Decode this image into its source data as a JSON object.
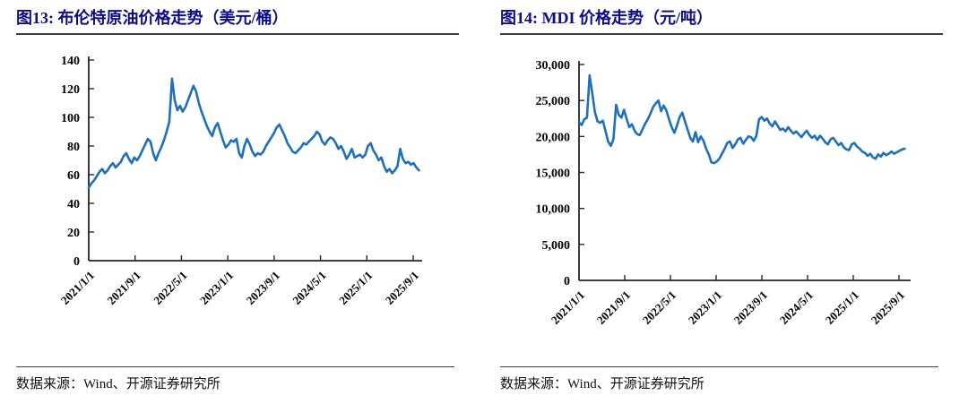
{
  "page": {
    "background": "#ffffff"
  },
  "colors": {
    "line": "#1e6fbc",
    "title": "#0c0c86",
    "axis": "#262626",
    "rule": "#404040",
    "text": "#111111"
  },
  "figures": [
    {
      "id": "图13",
      "title": "图13:  布伦特原油价格走势（美元/桶）",
      "source": "数据来源：Wind、开源证券研究所"
    },
    {
      "id": "图14",
      "title": "图14:  MDI 价格走势（元/吨）",
      "source": "数据来源：Wind、开源证券研究所"
    }
  ],
  "chart_data": [
    {
      "type": "line",
      "title": "布伦特原油价格走势",
      "unit": "美元/桶",
      "legend": "none",
      "grid": false,
      "ylim": [
        0,
        140
      ],
      "yticks": [
        0,
        20,
        40,
        60,
        80,
        100,
        120,
        140
      ],
      "ytick_labels": [
        "0",
        "20",
        "40",
        "60",
        "80",
        "100",
        "120",
        "140"
      ],
      "x_tick_labels": [
        "2021/1/1",
        "2021/9/1",
        "2022/5/1",
        "2023/1/1",
        "2023/9/1",
        "2024/5/1",
        "2025/1/1",
        "2025/9/1"
      ],
      "x_tick_months": [
        0,
        8,
        16,
        24,
        32,
        40,
        48,
        56
      ],
      "x_total_months": 57,
      "series": [
        {
          "name": "布伦特原油价格",
          "values": [
            51,
            54,
            56,
            59,
            62,
            64,
            61,
            63,
            66,
            68,
            65,
            67,
            69,
            73,
            75,
            71,
            68,
            72,
            70,
            73,
            77,
            81,
            85,
            83,
            75,
            70,
            75,
            79,
            84,
            90,
            97,
            127,
            112,
            105,
            108,
            104,
            107,
            112,
            117,
            122,
            118,
            110,
            104,
            99,
            94,
            90,
            87,
            93,
            96,
            90,
            84,
            79,
            81,
            84,
            83,
            85,
            75,
            72,
            80,
            85,
            81,
            76,
            73,
            75,
            74,
            76,
            80,
            83,
            86,
            89,
            93,
            95,
            91,
            87,
            82,
            79,
            76,
            75,
            77,
            79,
            82,
            81,
            83,
            85,
            87,
            90,
            88,
            83,
            81,
            84,
            86,
            85,
            82,
            78,
            80,
            76,
            71,
            74,
            78,
            72,
            73,
            74,
            72,
            74,
            80,
            82,
            77,
            74,
            70,
            72,
            66,
            62,
            64,
            61,
            63,
            66,
            78,
            71,
            68,
            69,
            67,
            68,
            65,
            63
          ]
        }
      ],
      "source": "数据来源：Wind、开源证券研究所"
    },
    {
      "type": "line",
      "title": "MDI 价格走势",
      "unit": "元/吨",
      "legend": "none",
      "grid": false,
      "ylim": [
        0,
        30000
      ],
      "yticks": [
        0,
        5000,
        10000,
        15000,
        20000,
        25000,
        30000
      ],
      "ytick_labels": [
        "0",
        "5,000",
        "10,000",
        "15,000",
        "20,000",
        "25,000",
        "30,000"
      ],
      "x_tick_labels": [
        "2021/1/1",
        "2021/9/1",
        "2022/5/1",
        "2023/1/1",
        "2023/9/1",
        "2024/5/1",
        "2025/1/1",
        "2025/9/1"
      ],
      "x_tick_months": [
        0,
        8,
        16,
        24,
        32,
        40,
        48,
        56
      ],
      "x_total_months": 57,
      "series": [
        {
          "name": "MDI价格",
          "values": [
            22000,
            21600,
            22400,
            22600,
            28500,
            26000,
            23400,
            22100,
            21900,
            22200,
            20800,
            19300,
            18700,
            19600,
            24400,
            23000,
            22600,
            23700,
            22400,
            21300,
            21700,
            20800,
            20300,
            20200,
            21000,
            21800,
            22400,
            23200,
            24100,
            24600,
            25000,
            23500,
            24300,
            23600,
            22400,
            21300,
            20500,
            21500,
            22700,
            23300,
            22100,
            21000,
            19800,
            19300,
            20600,
            19200,
            20000,
            19400,
            18300,
            17500,
            16400,
            16300,
            16500,
            16900,
            17600,
            18300,
            19100,
            19300,
            18400,
            18900,
            19600,
            19800,
            19000,
            19500,
            20000,
            19900,
            19400,
            20100,
            22400,
            22700,
            22200,
            22500,
            21800,
            21400,
            22100,
            21500,
            20900,
            21100,
            20700,
            21300,
            20800,
            20400,
            20700,
            20300,
            19900,
            20400,
            20800,
            20200,
            19800,
            20100,
            19500,
            20100,
            19700,
            19200,
            18900,
            19600,
            19800,
            19300,
            18800,
            19100,
            18500,
            18200,
            18100,
            18900,
            19100,
            18600,
            18300,
            17900,
            17700,
            17300,
            17600,
            17100,
            16900,
            17500,
            17200,
            17700,
            17400,
            17600,
            17900,
            17600,
            17800,
            18000,
            18200,
            18300
          ]
        }
      ],
      "source": "数据来源：Wind、开源证券研究所"
    }
  ]
}
